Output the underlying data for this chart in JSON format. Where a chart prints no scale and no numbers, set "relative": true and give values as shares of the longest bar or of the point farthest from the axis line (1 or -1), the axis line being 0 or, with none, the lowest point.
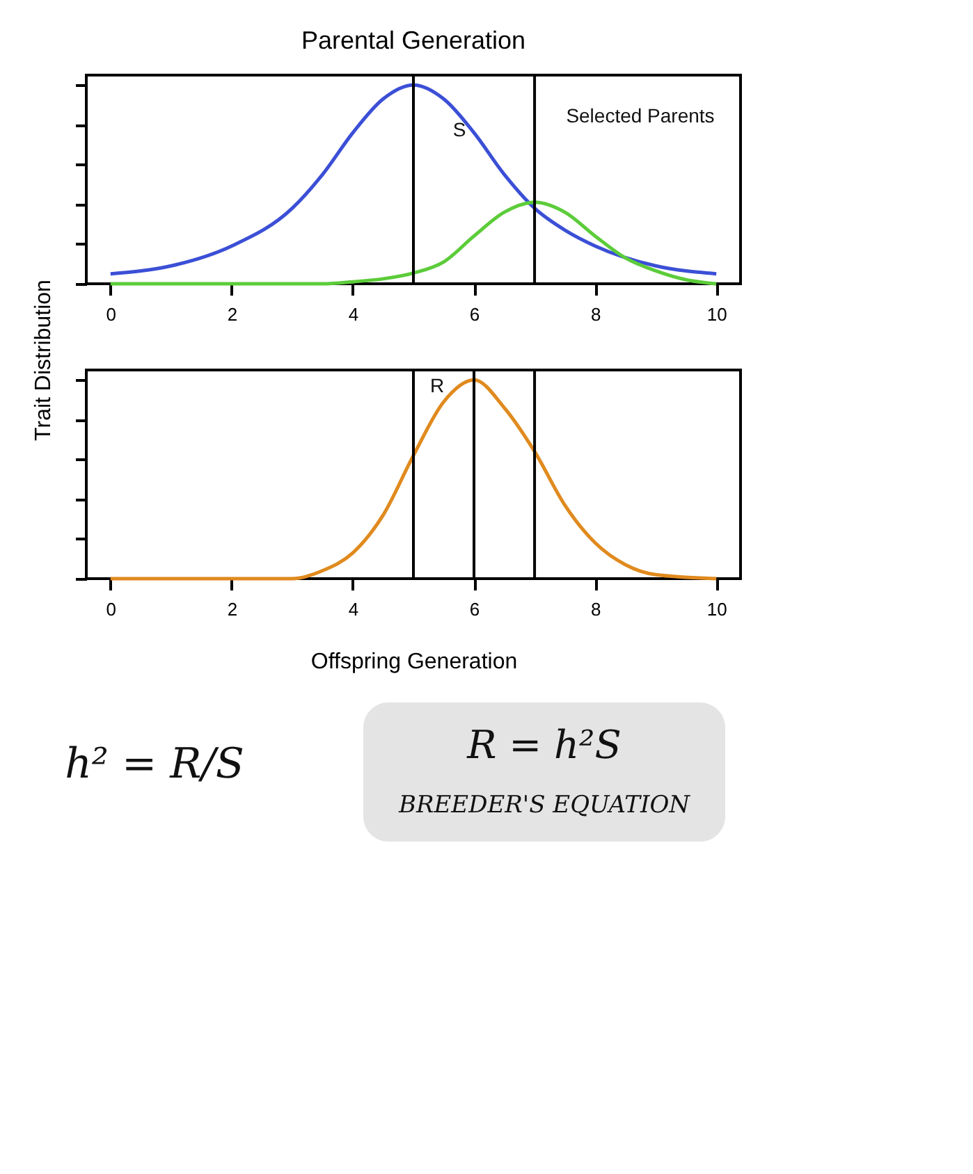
{
  "chart_data": [
    {
      "type": "line",
      "title": "Parental Generation",
      "ylabel": "Trait Distribution",
      "relative": true,
      "xlim": [
        -0.4,
        10.4
      ],
      "xticks": [
        0,
        2,
        4,
        6,
        8,
        10
      ],
      "tick_labels": "x",
      "series": [
        {
          "color": "#3b4fd6",
          "x": [
            0,
            1,
            2,
            3,
            3.5,
            4,
            4.5,
            5,
            5.5,
            6,
            6.5,
            7,
            7.5,
            8,
            9,
            10
          ],
          "values": [
            0.05,
            0.09,
            0.19,
            0.38,
            0.55,
            0.76,
            0.93,
            1,
            0.93,
            0.76,
            0.55,
            0.38,
            0.27,
            0.19,
            0.09,
            0.05
          ]
        },
        {
          "color": "#5ccc3a",
          "x": [
            0,
            1,
            2,
            3,
            3.5,
            4,
            4.5,
            5,
            5.5,
            6,
            6.5,
            7,
            7.5,
            8,
            8.5,
            9,
            9.5,
            10
          ],
          "values": [
            0,
            0,
            0,
            0,
            0,
            0.01,
            0.025,
            0.054,
            0.11,
            0.24,
            0.36,
            0.41,
            0.36,
            0.24,
            0.13,
            0.065,
            0.02,
            0
          ]
        }
      ],
      "ref_lines": [
        {
          "axis": "x",
          "value": 5,
          "color": "#000000"
        },
        {
          "axis": "x",
          "value": 7,
          "color": "#000000"
        }
      ],
      "annotations": [
        "S",
        "Selected Parents"
      ]
    },
    {
      "type": "line",
      "xlabel": "Offspring Generation",
      "relative": true,
      "xlim": [
        -0.4,
        10.4
      ],
      "xticks": [
        0,
        2,
        4,
        6,
        8,
        10
      ],
      "tick_labels": "x",
      "series": [
        {
          "color": "#e08a1e",
          "x": [
            0,
            1,
            2,
            3,
            3.5,
            4,
            4.5,
            5,
            5.5,
            6,
            6.5,
            7,
            7.5,
            8,
            8.5,
            9,
            10
          ],
          "values": [
            0,
            0,
            0,
            0,
            0.04,
            0.13,
            0.32,
            0.62,
            0.89,
            1,
            0.86,
            0.64,
            0.37,
            0.18,
            0.07,
            0.02,
            0
          ]
        }
      ],
      "ref_lines": [
        {
          "axis": "x",
          "value": 5,
          "color": "#000000"
        },
        {
          "axis": "x",
          "value": 6,
          "color": "#000000"
        },
        {
          "axis": "x",
          "value": 7,
          "color": "#000000"
        }
      ],
      "annotations": [
        "h² = R/S",
        "R = h²S",
        "BREEDER'S EQUATION",
        "R"
      ]
    }
  ]
}
